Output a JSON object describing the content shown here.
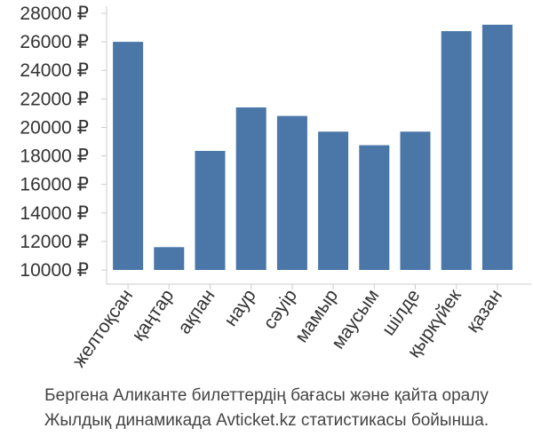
{
  "chart_data": {
    "type": "bar",
    "categories": [
      "желтоқсан",
      "қаңтар",
      "ақпан",
      "наур",
      "сәуір",
      "мамыр",
      "маусым",
      "шілде",
      "қыркүйек",
      "қазан"
    ],
    "values": [
      26000,
      11600,
      18350,
      21400,
      20800,
      19700,
      18750,
      19700,
      26750,
      27200
    ],
    "ylim": [
      10000,
      28000
    ],
    "yticks": [
      10000,
      12000,
      14000,
      16000,
      18000,
      20000,
      22000,
      24000,
      26000,
      28000
    ],
    "ytick_labels": [
      "10000 ₽",
      "12000 ₽",
      "14000 ₽",
      "16000 ₽",
      "18000 ₽",
      "20000 ₽",
      "22000 ₽",
      "24000 ₽",
      "26000 ₽",
      "28000 ₽"
    ],
    "bar_color": "#4a76a8",
    "grid": false
  },
  "caption": {
    "line1": "Бергена Аликанте билеттердің бағасы және қайта оралу",
    "line2": "Жылдық динамикада Avticket.kz статистикасы бойынша."
  }
}
